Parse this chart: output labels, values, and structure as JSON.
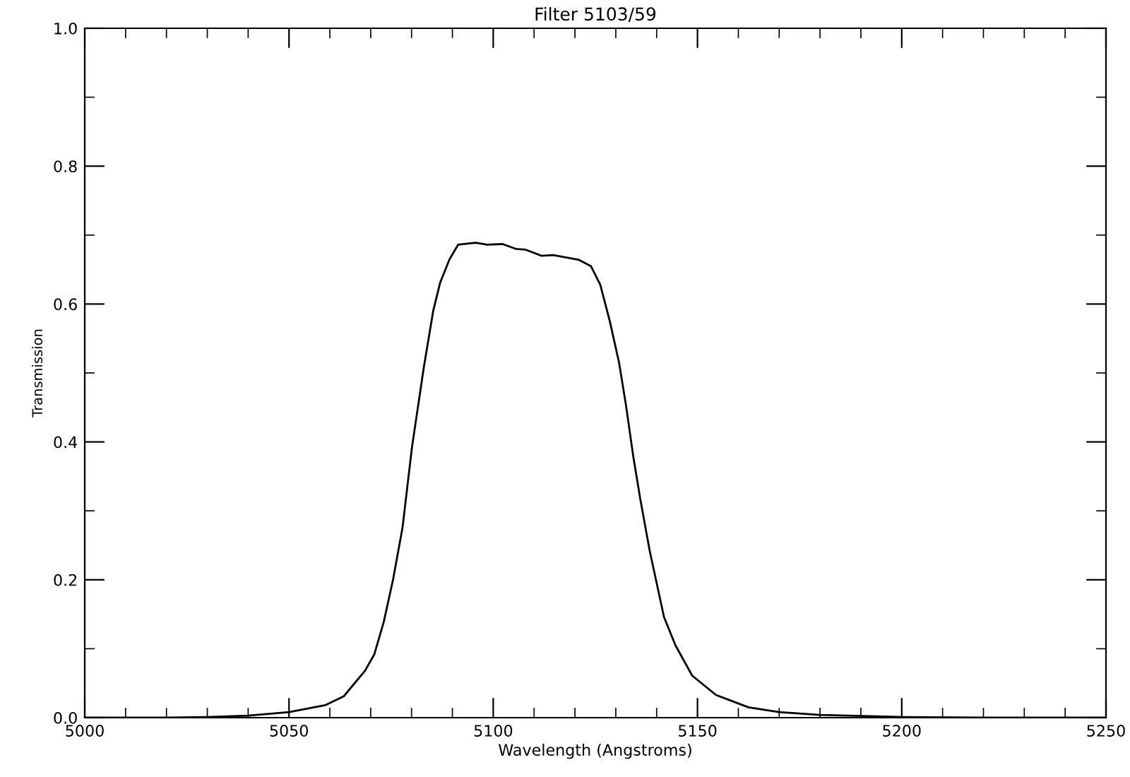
{
  "chart_data": {
    "type": "line",
    "title": "Filter 5103/59",
    "xlabel": "Wavelength (Angstroms)",
    "ylabel": "Transmission",
    "x": [
      5000,
      5020,
      5030,
      5040,
      5050,
      5058.8,
      5063.4,
      5068.6,
      5070.9,
      5073.2,
      5075.5,
      5077.8,
      5080.1,
      5083.0,
      5085.3,
      5087.0,
      5089.3,
      5091.4,
      5095.7,
      5098.5,
      5102.3,
      5105.5,
      5107.8,
      5111.8,
      5114.7,
      5121.0,
      5123.9,
      5126.2,
      5128.5,
      5130.8,
      5132.5,
      5134.3,
      5136.0,
      5138.3,
      5141.8,
      5144.6,
      5148.7,
      5154.5,
      5162.5,
      5170,
      5180,
      5200,
      5220,
      5250
    ],
    "series": [
      {
        "color": "#000000",
        "values": [
          0.0,
          0.0,
          0.001,
          0.003,
          0.008,
          0.018,
          0.031,
          0.068,
          0.092,
          0.139,
          0.201,
          0.276,
          0.392,
          0.508,
          0.59,
          0.631,
          0.665,
          0.686,
          0.689,
          0.686,
          0.687,
          0.68,
          0.679,
          0.67,
          0.671,
          0.664,
          0.655,
          0.628,
          0.576,
          0.515,
          0.453,
          0.378,
          0.317,
          0.242,
          0.146,
          0.105,
          0.061,
          0.033,
          0.015,
          0.008,
          0.004,
          0.001,
          0.0,
          0.0
        ]
      }
    ],
    "xlim": [
      5000,
      5250
    ],
    "ylim": [
      0.0,
      1.0
    ],
    "xticks": [
      5000,
      5050,
      5100,
      5150,
      5200,
      5250
    ],
    "yticks": [
      {
        "value": 0,
        "label": "0.0"
      },
      {
        "value": 0.2,
        "label": "0.2"
      },
      {
        "value": 0.4,
        "label": "0.4"
      },
      {
        "value": 0.6,
        "label": "0.6"
      },
      {
        "value": 0.8,
        "label": "0.8"
      },
      {
        "value": 1,
        "label": "1.0"
      }
    ],
    "grid": false,
    "legend": false,
    "marker": "none",
    "line_style": "solid"
  }
}
